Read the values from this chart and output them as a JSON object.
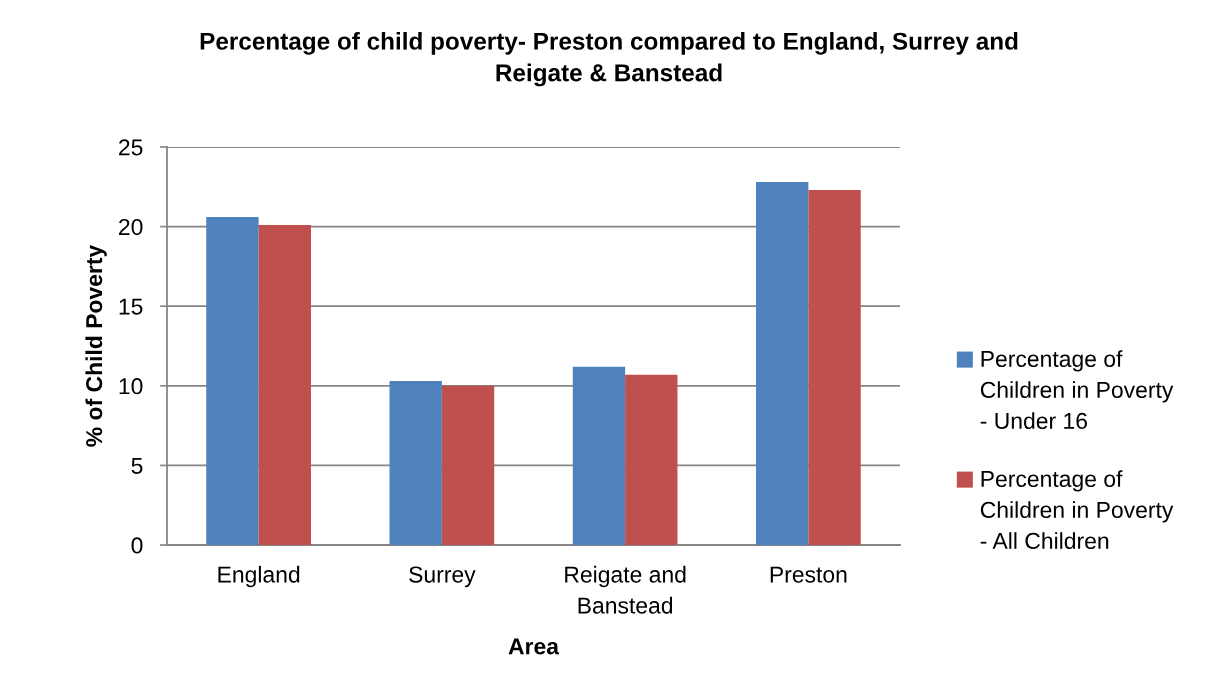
{
  "chart_data": {
    "type": "bar",
    "title": "Percentage of child poverty- Preston compared to England, Surrey and Reigate & Banstead",
    "xlabel": "Area",
    "ylabel": "% of Child Poverty",
    "categories": [
      "England",
      "Surrey",
      "Reigate and Banstead",
      "Preston"
    ],
    "series": [
      {
        "name": "Percentage of Children in Poverty - Under 16",
        "color": "#4f81bd",
        "values": [
          20.6,
          10.3,
          11.2,
          22.8
        ]
      },
      {
        "name": "Percentage of Children in Poverty - All Children",
        "color": "#c0504d",
        "values": [
          20.1,
          10.0,
          10.7,
          22.3
        ]
      }
    ],
    "ylim": [
      0,
      25
    ],
    "yticks": [
      0,
      5,
      10,
      15,
      20,
      25
    ],
    "grid": "y",
    "legend": "right"
  }
}
